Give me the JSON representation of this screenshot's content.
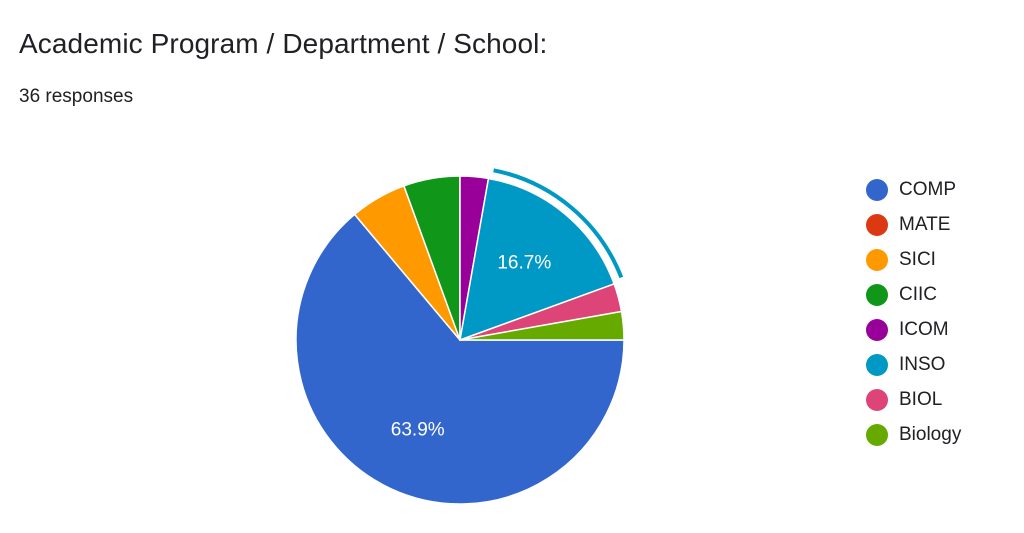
{
  "header": {
    "title": "Academic Program / Department / School:",
    "responses": "36 responses"
  },
  "chart_data": {
    "type": "pie",
    "total_responses": 36,
    "categories": [
      "COMP",
      "MATE",
      "SICI",
      "CIIC",
      "ICOM",
      "INSO",
      "BIOL",
      "Biology"
    ],
    "values": [
      23,
      0,
      2,
      2,
      1,
      6,
      1,
      1
    ],
    "data_labels": [
      "63.9%",
      "",
      "",
      "",
      "",
      "16.7%",
      "",
      ""
    ],
    "colors": [
      "#3366cc",
      "#dc3912",
      "#ff9900",
      "#109618",
      "#990099",
      "#0099c6",
      "#dd4477",
      "#66aa00"
    ],
    "highlighted_slice": "INSO",
    "legend_placement": "right"
  }
}
